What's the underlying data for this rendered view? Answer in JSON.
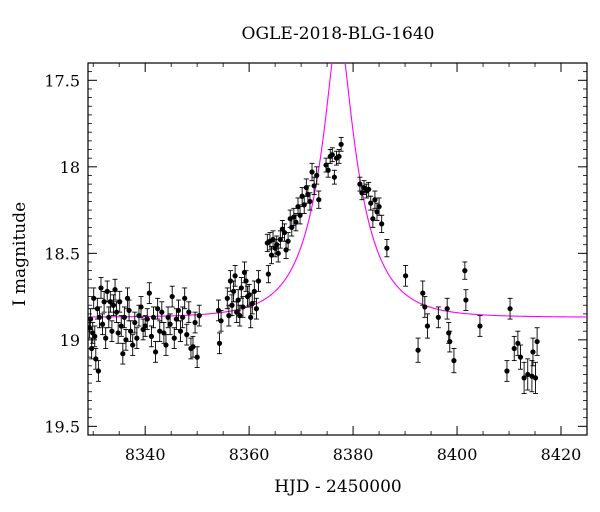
{
  "chart_data": {
    "type": "scatter",
    "title": "OGLE-2018-BLG-1640",
    "xlabel": "HJD - 2450000",
    "ylabel": "I magnitude",
    "xlim": [
      8329,
      8425
    ],
    "ylim": [
      19.55,
      17.4
    ],
    "y_inverted": true,
    "grid": false,
    "x_ticks": [
      8340,
      8360,
      8380,
      8400,
      8420
    ],
    "y_ticks": [
      17.5,
      18,
      18.5,
      19,
      19.5
    ],
    "x_tick_labels": [
      "8340",
      "8360",
      "8380",
      "8400",
      "8420"
    ],
    "y_tick_labels": [
      "17.5",
      "18",
      "18.5",
      "19",
      "19.5"
    ],
    "series": [
      {
        "type": "scatter_errorbar",
        "color": "#000000",
        "points": [
          [
            8329.3,
            18.93,
            0.06
          ],
          [
            8329.5,
            18.88,
            0.06
          ],
          [
            8329.7,
            19.05,
            0.06
          ],
          [
            8329.9,
            18.96,
            0.06
          ],
          [
            8330.1,
            18.76,
            0.06
          ],
          [
            8330.3,
            18.98,
            0.06
          ],
          [
            8330.5,
            19.11,
            0.06
          ],
          [
            8330.8,
            18.82,
            0.06
          ],
          [
            8331.0,
            19.18,
            0.06
          ],
          [
            8331.2,
            18.87,
            0.06
          ],
          [
            8331.5,
            18.7,
            0.06
          ],
          [
            8331.8,
            18.91,
            0.06
          ],
          [
            8332.1,
            18.78,
            0.06
          ],
          [
            8332.4,
            18.99,
            0.06
          ],
          [
            8332.7,
            18.72,
            0.06
          ],
          [
            8333.0,
            18.87,
            0.06
          ],
          [
            8333.3,
            18.78,
            0.06
          ],
          [
            8333.6,
            18.95,
            0.06
          ],
          [
            8333.9,
            18.8,
            0.06
          ],
          [
            8334.2,
            18.71,
            0.06
          ],
          [
            8334.5,
            18.84,
            0.06
          ],
          [
            8334.8,
            18.96,
            0.06
          ],
          [
            8335.1,
            18.78,
            0.06
          ],
          [
            8335.4,
            18.92,
            0.06
          ],
          [
            8335.7,
            19.08,
            0.06
          ],
          [
            8336.0,
            18.87,
            0.06
          ],
          [
            8336.3,
            19.0,
            0.06
          ],
          [
            8336.6,
            18.76,
            0.06
          ],
          [
            8336.9,
            18.83,
            0.06
          ],
          [
            8337.2,
            18.95,
            0.06
          ],
          [
            8337.6,
            19.03,
            0.06
          ],
          [
            8338.0,
            18.9,
            0.06
          ],
          [
            8338.4,
            18.99,
            0.06
          ],
          [
            8338.8,
            18.86,
            0.06
          ],
          [
            8339.2,
            18.81,
            0.06
          ],
          [
            8339.6,
            18.94,
            0.06
          ],
          [
            8340.0,
            18.92,
            0.06
          ],
          [
            8340.4,
            18.88,
            0.06
          ],
          [
            8340.8,
            18.73,
            0.06
          ],
          [
            8341.2,
            18.98,
            0.06
          ],
          [
            8341.6,
            18.87,
            0.06
          ],
          [
            8342.0,
            19.07,
            0.06
          ],
          [
            8342.4,
            18.82,
            0.06
          ],
          [
            8342.8,
            18.95,
            0.06
          ],
          [
            8343.2,
            18.84,
            0.06
          ],
          [
            8343.6,
            18.96,
            0.06
          ],
          [
            8344.0,
            19.03,
            0.06
          ],
          [
            8344.4,
            18.87,
            0.06
          ],
          [
            8344.8,
            18.91,
            0.06
          ],
          [
            8345.2,
            18.75,
            0.06
          ],
          [
            8345.6,
            18.99,
            0.06
          ],
          [
            8346.0,
            18.88,
            0.06
          ],
          [
            8346.4,
            18.83,
            0.06
          ],
          [
            8346.8,
            18.95,
            0.06
          ],
          [
            8347.2,
            18.87,
            0.06
          ],
          [
            8347.6,
            18.76,
            0.06
          ],
          [
            8348.0,
            18.97,
            0.06
          ],
          [
            8348.4,
            18.84,
            0.06
          ],
          [
            8348.8,
            19.05,
            0.06
          ],
          [
            8349.2,
            19.04,
            0.06
          ],
          [
            8349.6,
            18.9,
            0.06
          ],
          [
            8350.0,
            19.1,
            0.06
          ],
          [
            8350.4,
            18.86,
            0.06
          ],
          [
            8354.1,
            18.83,
            0.06
          ],
          [
            8354.3,
            19.02,
            0.06
          ],
          [
            8354.6,
            18.89,
            0.06
          ],
          [
            8355.8,
            18.76,
            0.06
          ],
          [
            8356.1,
            18.86,
            0.06
          ],
          [
            8356.4,
            18.66,
            0.06
          ],
          [
            8356.7,
            18.8,
            0.06
          ],
          [
            8357.0,
            18.72,
            0.06
          ],
          [
            8357.3,
            18.63,
            0.06
          ],
          [
            8357.6,
            18.84,
            0.06
          ],
          [
            8357.9,
            18.77,
            0.06
          ],
          [
            8358.2,
            18.86,
            0.06
          ],
          [
            8358.5,
            18.7,
            0.06
          ],
          [
            8358.8,
            18.81,
            0.06
          ],
          [
            8359.1,
            18.61,
            0.06
          ],
          [
            8359.4,
            18.66,
            0.06
          ],
          [
            8359.7,
            18.75,
            0.06
          ],
          [
            8360.0,
            18.74,
            0.06
          ],
          [
            8360.3,
            18.87,
            0.06
          ],
          [
            8360.6,
            18.79,
            0.06
          ],
          [
            8361.0,
            18.72,
            0.06
          ],
          [
            8361.4,
            18.82,
            0.06
          ],
          [
            8361.8,
            18.66,
            0.06
          ],
          [
            8363.5,
            18.44,
            0.05
          ],
          [
            8363.7,
            18.62,
            0.05
          ],
          [
            8364.0,
            18.43,
            0.05
          ],
          [
            8364.3,
            18.51,
            0.05
          ],
          [
            8364.6,
            18.42,
            0.05
          ],
          [
            8365.0,
            18.47,
            0.05
          ],
          [
            8365.3,
            18.45,
            0.05
          ],
          [
            8365.6,
            18.5,
            0.05
          ],
          [
            8366.0,
            18.42,
            0.05
          ],
          [
            8366.4,
            18.36,
            0.05
          ],
          [
            8366.8,
            18.38,
            0.05
          ],
          [
            8367.1,
            18.48,
            0.05
          ],
          [
            8367.5,
            18.43,
            0.05
          ],
          [
            8367.9,
            18.3,
            0.05
          ],
          [
            8368.2,
            18.35,
            0.05
          ],
          [
            8368.6,
            18.29,
            0.05
          ],
          [
            8369.0,
            18.32,
            0.05
          ],
          [
            8369.4,
            18.23,
            0.05
          ],
          [
            8369.8,
            18.28,
            0.05
          ],
          [
            8370.2,
            18.17,
            0.05
          ],
          [
            8370.6,
            18.22,
            0.05
          ],
          [
            8371.0,
            18.12,
            0.05
          ],
          [
            8371.3,
            18.16,
            0.05
          ],
          [
            8371.7,
            18.2,
            0.05
          ],
          [
            8372.1,
            18.03,
            0.05
          ],
          [
            8372.5,
            18.11,
            0.05
          ],
          [
            8373.0,
            18.05,
            0.05
          ],
          [
            8373.4,
            18.19,
            0.05
          ],
          [
            8374.8,
            17.99,
            0.04
          ],
          [
            8375.2,
            18.02,
            0.04
          ],
          [
            8375.6,
            17.94,
            0.04
          ],
          [
            8376.0,
            17.93,
            0.04
          ],
          [
            8376.4,
            18.06,
            0.04
          ],
          [
            8376.8,
            17.95,
            0.04
          ],
          [
            8377.3,
            17.94,
            0.04
          ],
          [
            8377.7,
            17.87,
            0.04
          ],
          [
            8381.3,
            18.1,
            0.04
          ],
          [
            8381.7,
            18.15,
            0.04
          ],
          [
            8382.1,
            18.12,
            0.04
          ],
          [
            8382.6,
            18.14,
            0.04
          ],
          [
            8383.0,
            18.13,
            0.04
          ],
          [
            8383.4,
            18.21,
            0.04
          ],
          [
            8383.8,
            18.3,
            0.05
          ],
          [
            8384.2,
            18.19,
            0.05
          ],
          [
            8384.6,
            18.26,
            0.05
          ],
          [
            8385.0,
            18.23,
            0.05
          ],
          [
            8385.5,
            18.33,
            0.05
          ],
          [
            8386.5,
            18.47,
            0.05
          ],
          [
            8390.1,
            18.63,
            0.06
          ],
          [
            8392.5,
            19.06,
            0.07
          ],
          [
            8393.4,
            18.73,
            0.07
          ],
          [
            8393.8,
            18.81,
            0.06
          ],
          [
            8394.3,
            18.92,
            0.07
          ],
          [
            8396.4,
            18.87,
            0.06
          ],
          [
            8398.1,
            18.82,
            0.06
          ],
          [
            8398.4,
            18.96,
            0.06
          ],
          [
            8398.6,
            19.01,
            0.06
          ],
          [
            8399.4,
            19.12,
            0.07
          ],
          [
            8401.5,
            18.6,
            0.05
          ],
          [
            8401.7,
            18.77,
            0.06
          ],
          [
            8404.4,
            18.92,
            0.06
          ],
          [
            8409.6,
            19.18,
            0.06
          ],
          [
            8410.2,
            18.82,
            0.06
          ],
          [
            8411.0,
            19.05,
            0.07
          ],
          [
            8411.7,
            19.02,
            0.07
          ],
          [
            8412.2,
            19.1,
            0.07
          ],
          [
            8412.9,
            19.22,
            0.09
          ],
          [
            8413.6,
            19.2,
            0.09
          ],
          [
            8414.4,
            19.21,
            0.09
          ],
          [
            8414.6,
            19.07,
            0.08
          ],
          [
            8415.1,
            19.22,
            0.09
          ],
          [
            8415.4,
            19.01,
            0.08
          ]
        ]
      },
      {
        "type": "line",
        "color": "#ff00ff",
        "model": {
          "t0": 8377.2,
          "tE": 8.6,
          "u0": 0.22,
          "I_baseline": 18.87
        }
      }
    ]
  }
}
